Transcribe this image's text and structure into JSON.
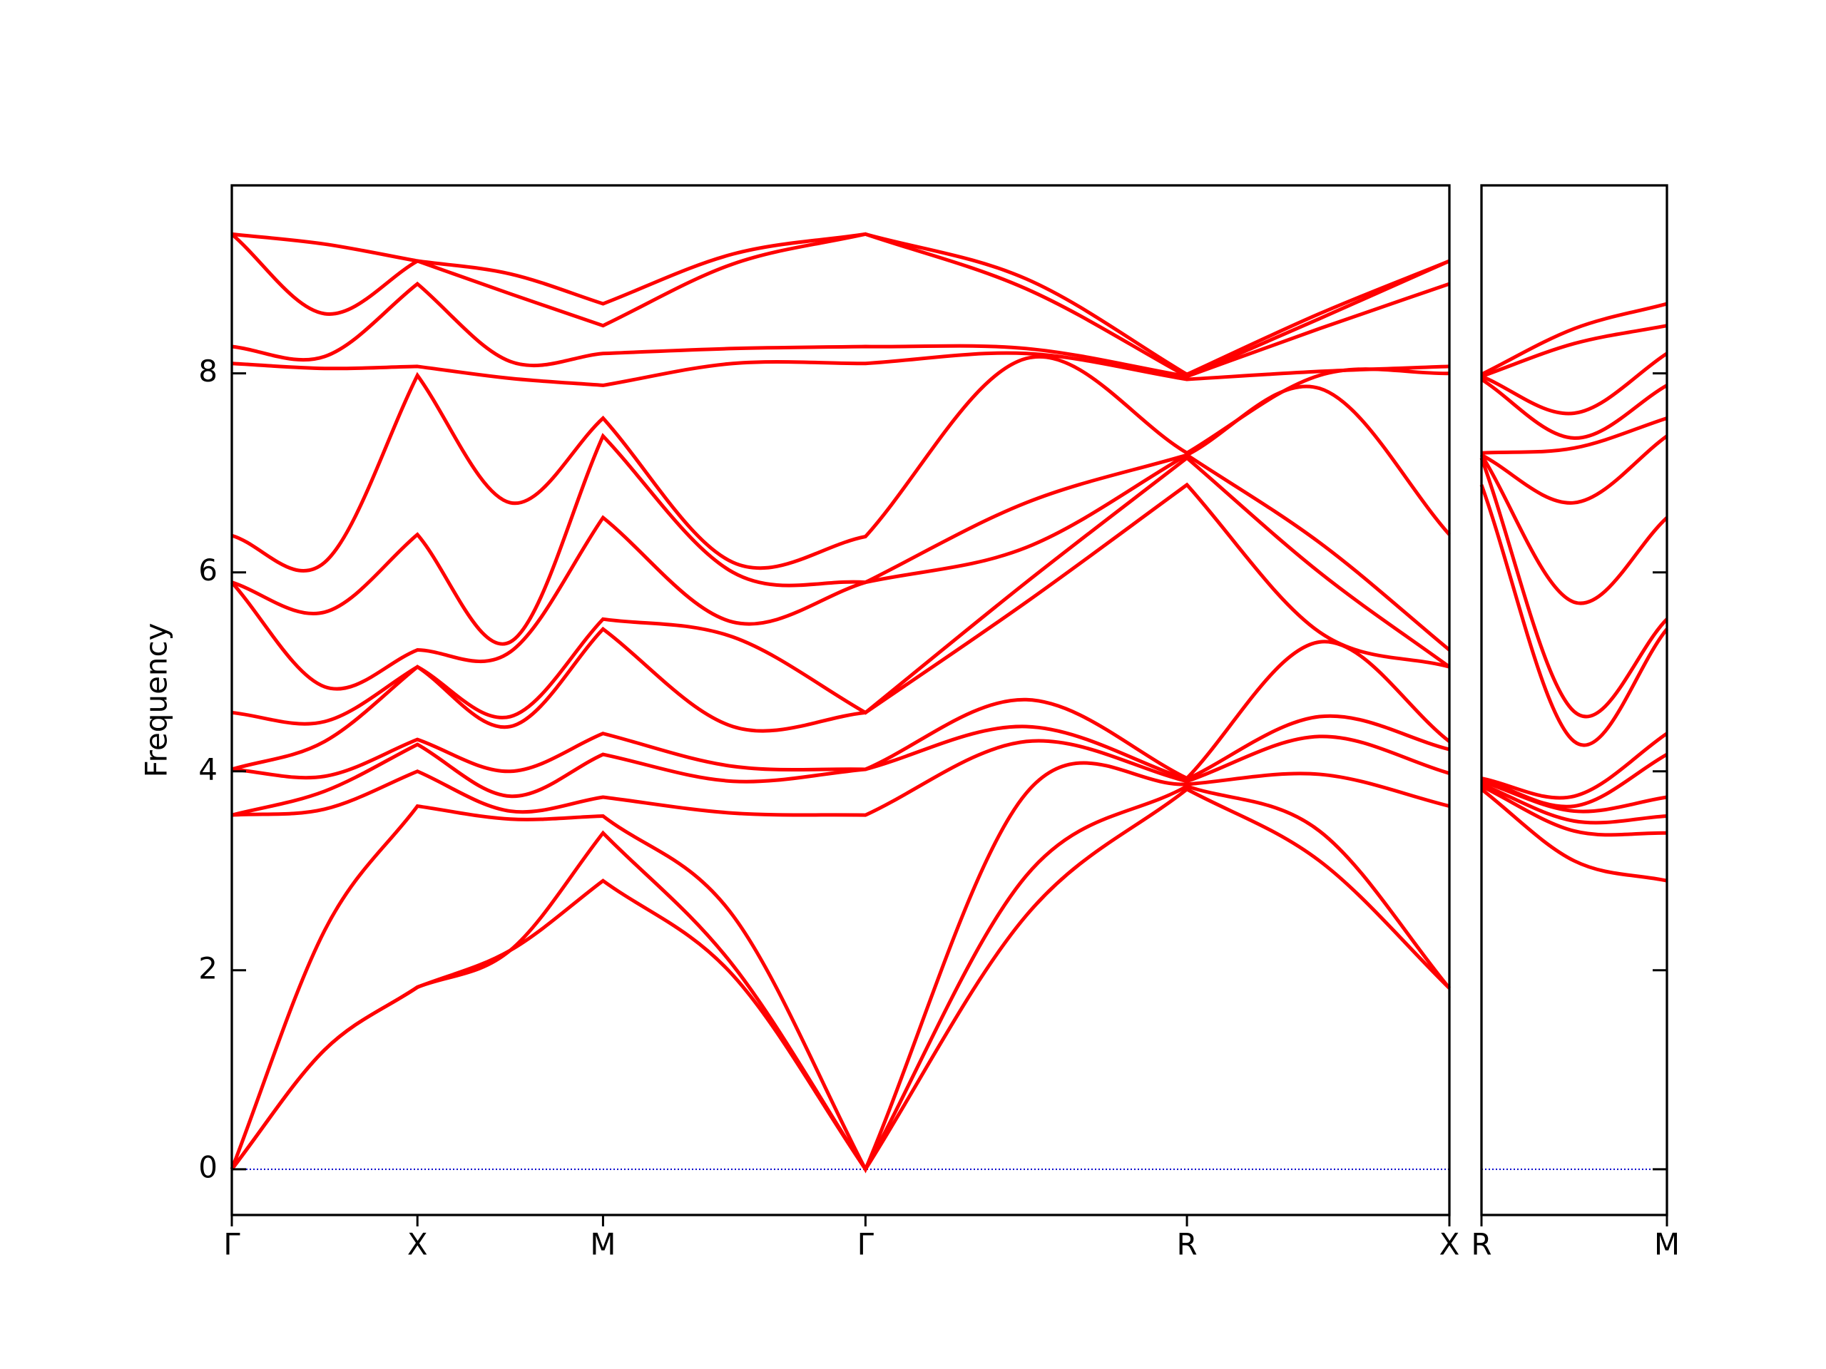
{
  "chart_data": [
    {
      "type": "line",
      "ylabel": "Frequency",
      "color": "#ff0000",
      "zero_line_color": "#0000cc",
      "ytick_side": "left",
      "show_ytick_labels": true,
      "x": [
        0,
        0.25,
        0.5,
        0.75,
        1.0,
        1.35,
        1.707,
        2.14,
        2.573,
        2.93,
        3.28
      ],
      "xlim": [
        0,
        3.28
      ],
      "xticks": [
        {
          "value": 0,
          "label": "Γ"
        },
        {
          "value": 0.5,
          "label": "X"
        },
        {
          "value": 1.0,
          "label": "M"
        },
        {
          "value": 1.707,
          "label": "Γ"
        },
        {
          "value": 2.573,
          "label": "R"
        },
        {
          "value": 3.28,
          "label": "X"
        }
      ],
      "ylim": [
        -0.46,
        9.89
      ],
      "yticks": [
        0,
        2,
        4,
        6,
        8
      ],
      "series": [
        {
          "values": [
            0,
            1.2,
            1.83,
            2.2,
            2.9,
            1.95,
            0,
            2.55,
            3.82,
            3.1,
            1.82
          ]
        },
        {
          "values": [
            0,
            1.2,
            1.83,
            2.2,
            3.38,
            2.05,
            0,
            2.95,
            3.85,
            3.4,
            1.82
          ]
        },
        {
          "values": [
            0,
            2.4,
            3.65,
            3.52,
            3.55,
            2.55,
            0,
            3.78,
            3.87,
            3.97,
            3.65
          ]
        },
        {
          "values": [
            3.56,
            3.62,
            4.0,
            3.6,
            3.74,
            3.58,
            3.56,
            4.3,
            3.9,
            4.35,
            3.98
          ]
        },
        {
          "values": [
            3.56,
            3.8,
            4.27,
            3.75,
            4.17,
            3.9,
            4.02,
            4.45,
            3.92,
            4.55,
            4.22
          ]
        },
        {
          "values": [
            4.02,
            3.95,
            4.32,
            4.0,
            4.38,
            4.05,
            4.02,
            4.72,
            3.93,
            5.3,
            4.3
          ]
        },
        {
          "values": [
            4.02,
            4.3,
            5.05,
            4.45,
            5.43,
            4.45,
            4.59,
            5.7,
            6.88,
            5.4,
            5.05
          ]
        },
        {
          "values": [
            4.59,
            4.5,
            5.05,
            4.55,
            5.53,
            5.35,
            4.59,
            5.9,
            7.15,
            6.0,
            5.05
          ]
        },
        {
          "values": [
            5.9,
            4.85,
            5.22,
            5.2,
            6.55,
            5.5,
            5.9,
            6.25,
            7.18,
            6.3,
            5.22
          ]
        },
        {
          "values": [
            5.9,
            5.6,
            6.38,
            5.3,
            7.37,
            6.0,
            5.9,
            6.7,
            7.18,
            7.85,
            6.38
          ]
        },
        {
          "values": [
            6.37,
            6.1,
            7.98,
            6.7,
            7.55,
            6.1,
            6.36,
            8.15,
            7.2,
            7.98,
            8.0
          ]
        },
        {
          "values": [
            8.1,
            8.05,
            8.07,
            7.95,
            7.88,
            8.1,
            8.1,
            8.2,
            7.94,
            8.02,
            8.07
          ]
        },
        {
          "values": [
            8.27,
            8.17,
            8.9,
            8.12,
            8.2,
            8.25,
            8.27,
            8.25,
            7.97,
            8.45,
            8.9
          ]
        },
        {
          "values": [
            9.4,
            8.6,
            9.13,
            8.8,
            8.48,
            9.1,
            9.4,
            8.85,
            7.97,
            8.55,
            9.13
          ]
        },
        {
          "values": [
            9.4,
            9.3,
            9.13,
            9.0,
            8.7,
            9.2,
            9.4,
            8.95,
            7.99,
            8.6,
            9.13
          ]
        }
      ]
    },
    {
      "type": "line",
      "color": "#ff0000",
      "zero_line_color": "#0000cc",
      "ytick_side": "right",
      "show_ytick_labels": false,
      "x": [
        0,
        0.25,
        0.5
      ],
      "xlim": [
        0,
        0.5
      ],
      "xticks": [
        {
          "value": 0,
          "label": "R"
        },
        {
          "value": 0.5,
          "label": "M"
        }
      ],
      "ylim": [
        -0.46,
        9.89
      ],
      "yticks": [
        0,
        2,
        4,
        6,
        8
      ],
      "series": [
        {
          "values": [
            3.82,
            3.1,
            2.9
          ]
        },
        {
          "values": [
            3.85,
            3.4,
            3.38
          ]
        },
        {
          "values": [
            3.87,
            3.5,
            3.55
          ]
        },
        {
          "values": [
            3.9,
            3.6,
            3.74
          ]
        },
        {
          "values": [
            3.92,
            3.65,
            4.17
          ]
        },
        {
          "values": [
            3.93,
            3.75,
            4.38
          ]
        },
        {
          "values": [
            6.88,
            4.3,
            5.43
          ]
        },
        {
          "values": [
            7.15,
            4.6,
            5.53
          ]
        },
        {
          "values": [
            7.18,
            5.7,
            6.55
          ]
        },
        {
          "values": [
            7.18,
            6.7,
            7.37
          ]
        },
        {
          "values": [
            7.2,
            7.25,
            7.55
          ]
        },
        {
          "values": [
            7.94,
            7.35,
            7.88
          ]
        },
        {
          "values": [
            7.97,
            7.6,
            8.2
          ]
        },
        {
          "values": [
            7.97,
            8.3,
            8.48
          ]
        },
        {
          "values": [
            7.99,
            8.45,
            8.7
          ]
        }
      ]
    }
  ]
}
